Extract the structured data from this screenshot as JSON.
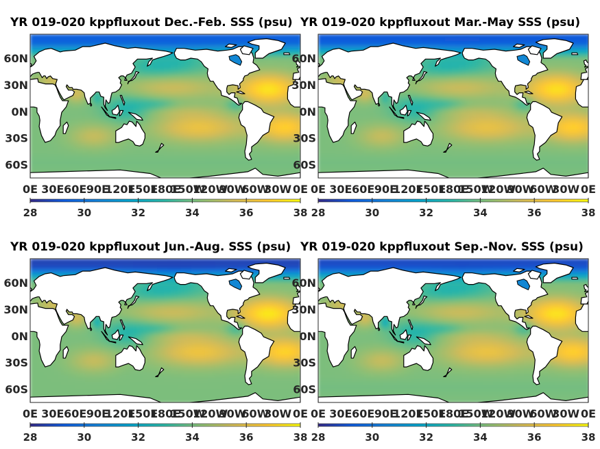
{
  "figure": {
    "panels": [
      {
        "title": "YR 019-020 kppfluxout Dec.-Feb. SSS (psu)",
        "season": "DJF"
      },
      {
        "title": "YR 019-020 kppfluxout Mar.-May SSS (psu)",
        "season": "MAM"
      },
      {
        "title": "YR 019-020 kppfluxout Jun.-Aug. SSS (psu)",
        "season": "JJA"
      },
      {
        "title": "YR 019-020 kppfluxout Sep.-Nov. SSS (psu)",
        "season": "SON"
      }
    ],
    "lat_ticks": [
      "60N",
      "30N",
      "0N",
      "30S",
      "60S"
    ],
    "lon_ticks": [
      "0E",
      "30E",
      "60E",
      "90E",
      "120E",
      "150E",
      "180E",
      "150W",
      "120W",
      "90W",
      "60W",
      "30W",
      "0E"
    ],
    "colorbar": {
      "ticks": [
        "28",
        "30",
        "32",
        "34",
        "36",
        "38"
      ],
      "range": [
        28,
        38
      ],
      "colormap": "parula",
      "colors": [
        "#352a87",
        "#0f5cdd",
        "#1481d6",
        "#06a4ca",
        "#2eb7a4",
        "#87bf77",
        "#d1bb59",
        "#fec832",
        "#f9fb0e"
      ]
    }
  },
  "chart_data": {
    "type": "heatmap",
    "variable": "SSS (psu)",
    "projection": "equirectangular, 0E to 360E",
    "lon_range": [
      0,
      360
    ],
    "color_range": [
      28,
      38
    ],
    "panels": [
      {
        "season": "Dec.-Feb.",
        "north_atlantic_max": 37.5,
        "south_atlantic_subtropics": 37.0,
        "south_pacific_subtropics": 36.3,
        "equatorial_pacific": 34.8,
        "southern_ocean": 34.0,
        "arctic": 29.5,
        "bay_of_bengal": 33.0
      },
      {
        "season": "Mar.-May",
        "north_atlantic_max": 37.4,
        "south_atlantic_subtropics": 37.0,
        "south_pacific_subtropics": 36.2,
        "equatorial_pacific": 34.8,
        "southern_ocean": 34.0,
        "arctic": 29.3,
        "bay_of_bengal": 33.2
      },
      {
        "season": "Jun.-Aug.",
        "north_atlantic_max": 37.6,
        "south_atlantic_subtropics": 37.1,
        "south_pacific_subtropics": 36.4,
        "equatorial_pacific": 34.9,
        "southern_ocean": 34.1,
        "arctic": 28.8,
        "bay_of_bengal": 32.6
      },
      {
        "season": "Sep.-Nov.",
        "north_atlantic_max": 37.5,
        "south_atlantic_subtropics": 37.0,
        "south_pacific_subtropics": 36.3,
        "equatorial_pacific": 34.8,
        "southern_ocean": 34.0,
        "arctic": 29.0,
        "bay_of_bengal": 32.4
      }
    ]
  }
}
